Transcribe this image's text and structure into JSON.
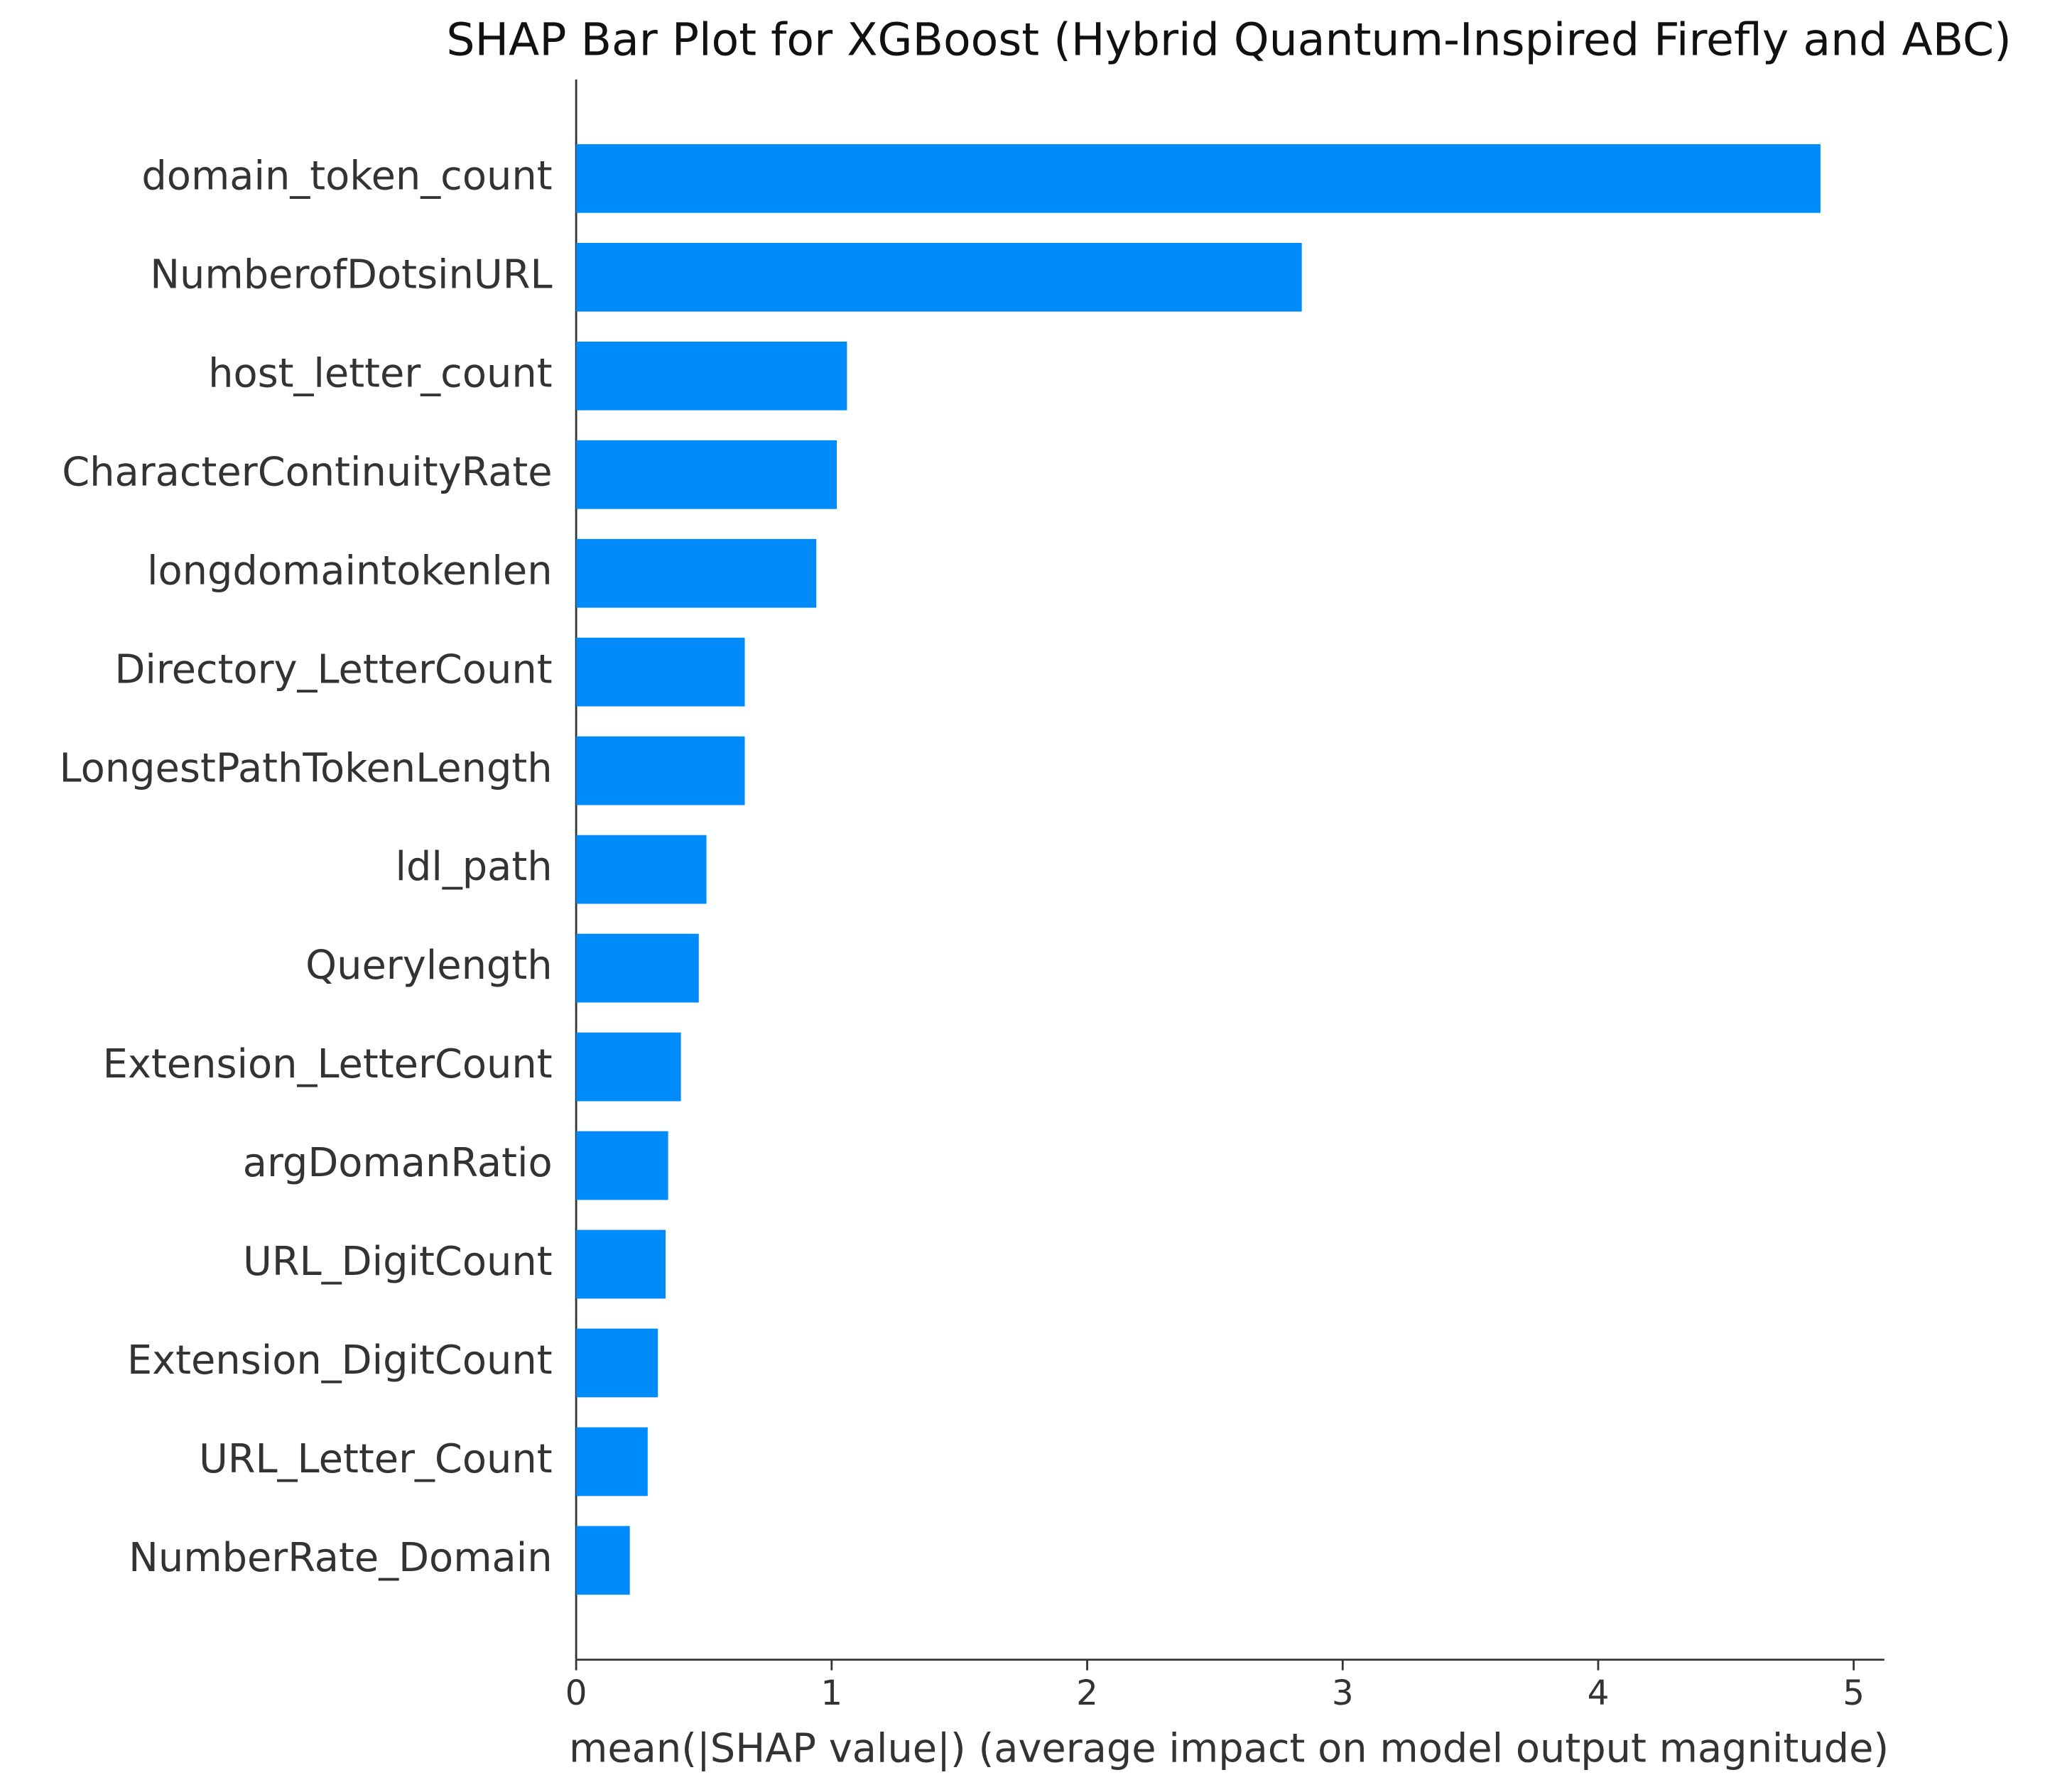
{
  "chart_data": {
    "type": "hbar",
    "title": "SHAP Bar Plot for XGBoost (Hybrid Quantum-Inspired Firefly and ABC)",
    "x_label": "mean(|SHAP value|) (average impact on model output magnitude)",
    "categories": [
      "domain_token_count",
      "NumberofDotsinURL",
      "host_letter_count",
      "CharacterContinuityRate",
      "longdomaintokenlen",
      "Directory_LetterCount",
      "LongestPathTokenLength",
      "ldl_path",
      "Querylength",
      "Extension_LetterCount",
      "argDomanRatio",
      "URL_DigitCount",
      "Extension_DigitCount",
      "URL_Letter_Count",
      "NumberRate_Domain"
    ],
    "values": [
      4.87,
      2.84,
      1.06,
      1.02,
      0.94,
      0.66,
      0.66,
      0.51,
      0.48,
      0.41,
      0.36,
      0.35,
      0.32,
      0.28,
      0.21
    ],
    "color": "#008bfb",
    "xlim": [
      0,
      5.12
    ],
    "xticks": [
      0,
      1,
      2,
      3,
      4,
      5
    ]
  }
}
